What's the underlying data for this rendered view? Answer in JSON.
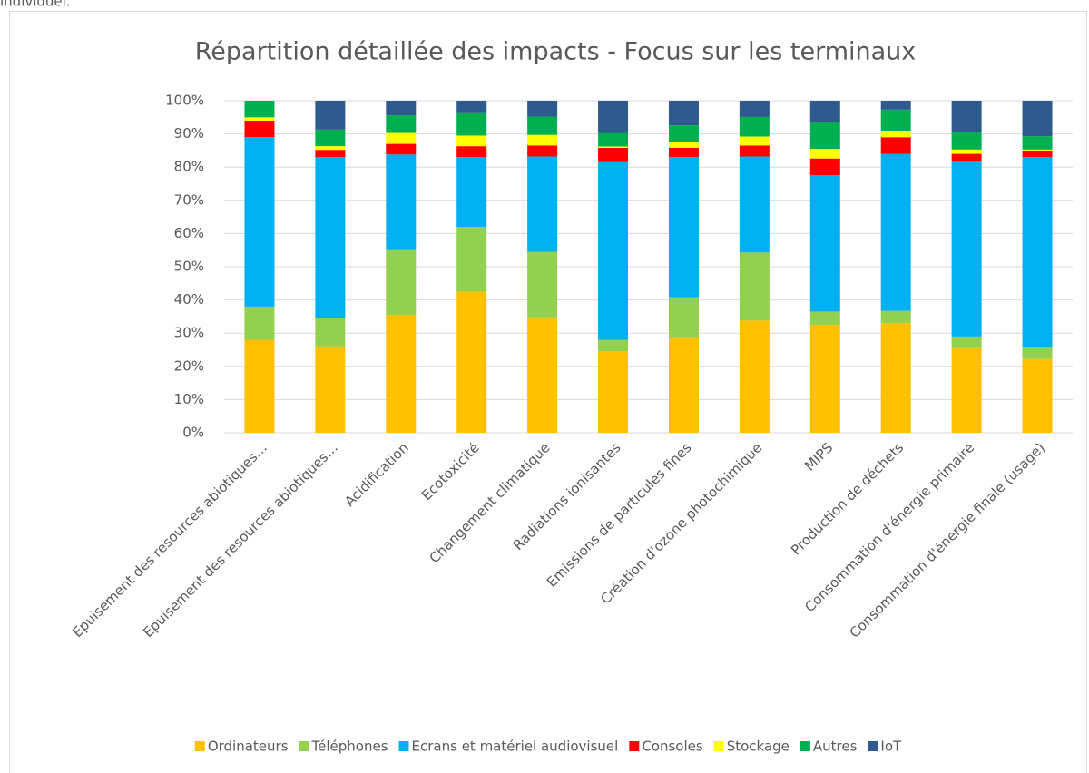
{
  "page_fragment": "individuel.",
  "chart_data": {
    "type": "stacked_bar_100",
    "title": "Répartition détaillée des impacts - Focus sur les terminaux",
    "categories": [
      "Epuisement des resources abiotiques…",
      "Epuisement des resources abiotiques…",
      "Acidification",
      "Ecotoxicité",
      "Changement climatique",
      "Radiations ionisantes",
      "Emissions de particules fines",
      "Création d'ozone photochimique",
      "MIPS",
      "Production de déchets",
      "Consommation d'énergie primaire",
      "Consommation d'énergie finale (usage)"
    ],
    "series": [
      {
        "name": "Ordinateurs",
        "color": "#FFC000",
        "values": [
          28,
          26,
          35.5,
          42.5,
          34.8,
          24.5,
          28.8,
          33.8,
          32.5,
          33,
          25.5,
          22.2
        ]
      },
      {
        "name": "Téléphones",
        "color": "#92D050",
        "values": [
          10,
          8.5,
          19.8,
          19.5,
          19.7,
          3.5,
          12,
          20.5,
          4,
          3.7,
          3.5,
          3.6
        ]
      },
      {
        "name": "Ecrans et matériel audiovisuel",
        "color": "#00B0F0",
        "values": [
          51,
          48.5,
          28.5,
          21,
          28.7,
          53.5,
          42.2,
          28.9,
          41.1,
          47.3,
          52.6,
          57.2
        ]
      },
      {
        "name": "Consoles",
        "color": "#FF0000",
        "values": [
          5,
          2.2,
          3.2,
          3.3,
          3.3,
          4.3,
          2.8,
          3.3,
          5,
          5,
          2.4,
          2
        ]
      },
      {
        "name": "Stockage",
        "color": "#FFFF00",
        "values": [
          1,
          1.1,
          3.3,
          3.2,
          3.2,
          0.4,
          1.9,
          2.7,
          2.9,
          2,
          1.3,
          0.3
        ]
      },
      {
        "name": "Autres",
        "color": "#00B050",
        "values": [
          5,
          5,
          5.3,
          7,
          5.5,
          4.1,
          4.9,
          5.9,
          8.1,
          6.3,
          5.3,
          4
        ]
      },
      {
        "name": "IoT",
        "color": "#2E5A8E",
        "values": [
          0,
          8.7,
          4.4,
          3.5,
          4.8,
          9.7,
          7.4,
          4.9,
          6.4,
          2.7,
          9.4,
          10.7
        ]
      }
    ],
    "ylim": [
      0,
      100
    ],
    "yticks": [
      {
        "value": 0,
        "label": "0%"
      },
      {
        "value": 10,
        "label": "10%"
      },
      {
        "value": 20,
        "label": "20%"
      },
      {
        "value": 30,
        "label": "30%"
      },
      {
        "value": 40,
        "label": "40%"
      },
      {
        "value": 50,
        "label": "50%"
      },
      {
        "value": 60,
        "label": "60%"
      },
      {
        "value": 70,
        "label": "70%"
      },
      {
        "value": 80,
        "label": "80%"
      },
      {
        "value": 90,
        "label": "90%"
      },
      {
        "value": 100,
        "label": "100%"
      }
    ],
    "grid": true,
    "legend": "bottom"
  }
}
